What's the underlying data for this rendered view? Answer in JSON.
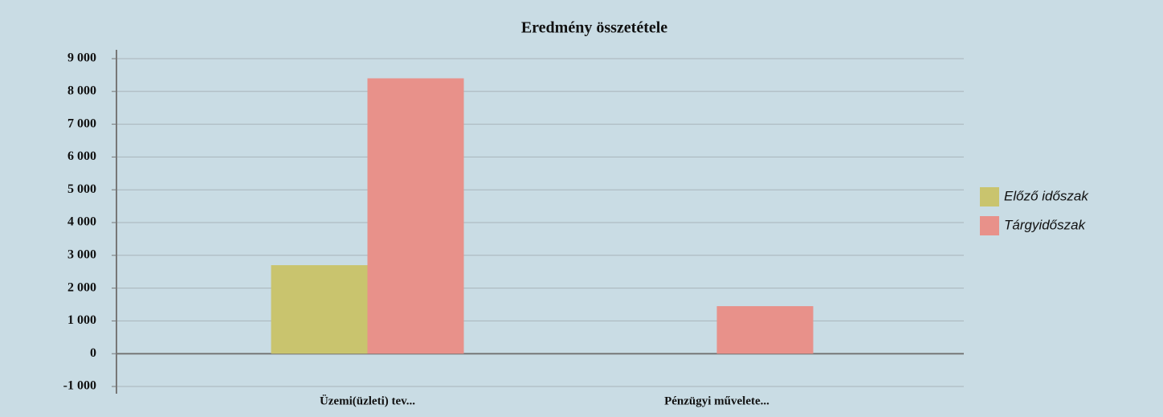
{
  "chart_data": {
    "type": "bar",
    "title": "Eredmény összetétele",
    "categories": [
      "Üzemi(üzleti) tev...",
      "Pénzügyi művelete..."
    ],
    "series": [
      {
        "name": "Előző időszak",
        "color": "#c9c46e",
        "values": [
          2700,
          0
        ]
      },
      {
        "name": "Tárgyidőszak",
        "color": "#e8918a",
        "values": [
          8400,
          1450
        ]
      }
    ],
    "ylim": [
      -1000,
      9000
    ],
    "yticks": [
      {
        "value": -1000,
        "label": "-1 000"
      },
      0,
      {
        "value": 1000,
        "label": "1 000"
      },
      {
        "value": 2000,
        "label": "2 000"
      },
      {
        "value": 3000,
        "label": "3 000"
      },
      {
        "value": 4000,
        "label": "4 000"
      },
      {
        "value": 5000,
        "label": "5 000"
      },
      {
        "value": 6000,
        "label": "6 000"
      },
      {
        "value": 7000,
        "label": "7 000"
      },
      {
        "value": 8000,
        "label": "8 000"
      },
      {
        "value": 9000,
        "label": "9 000"
      }
    ],
    "grid": true,
    "legend": "right"
  }
}
